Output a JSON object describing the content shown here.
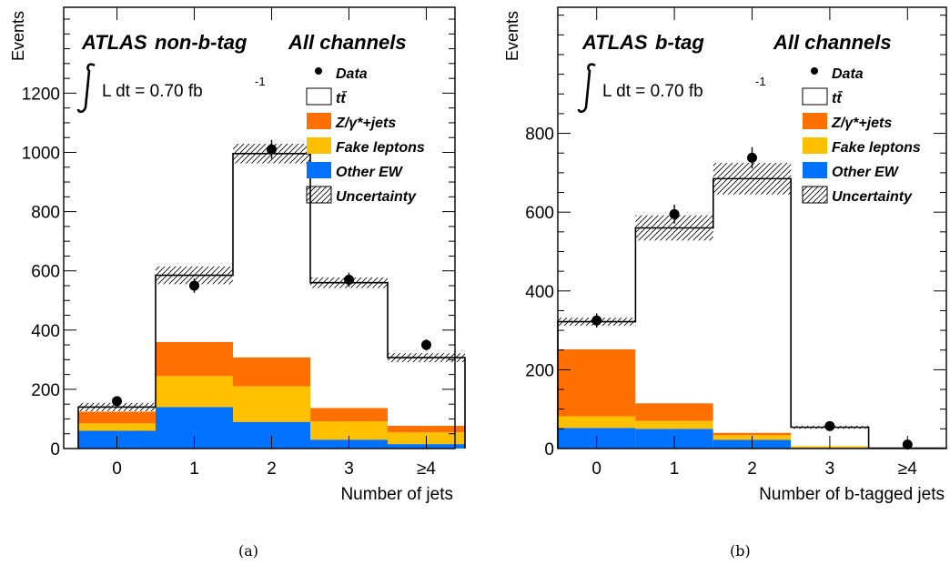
{
  "colors": {
    "ttbar": "#ffffff",
    "zjets": "#ff7000",
    "fake": "#ffc000",
    "other_ew": "#0072ff",
    "line": "#000000"
  },
  "captions": {
    "a": "(a)",
    "b": "(b)"
  },
  "chart_data": [
    {
      "type": "bar",
      "stacked": true,
      "atlas_label": "ATLAS",
      "region": "non-b-tag",
      "channels": "All channels",
      "lumi_prefix": "L dt = 0.70 fb",
      "lumi_exp": "-1",
      "xlabel": "Number of jets",
      "ylabel": "Events",
      "categories": [
        "0",
        "1",
        "2",
        "3",
        "≥4"
      ],
      "ylim": [
        0,
        1490
      ],
      "yticks": [
        0,
        200,
        400,
        600,
        800,
        1000,
        1200
      ],
      "legend": [
        "Data",
        "tt̄",
        "Z/γ*+jets",
        "Fake leptons",
        "Other EW",
        "Uncertainty"
      ],
      "series": [
        {
          "name": "Other EW",
          "values": [
            60,
            140,
            90,
            30,
            15
          ]
        },
        {
          "name": "Fake leptons",
          "values": [
            25,
            105,
            120,
            62,
            40
          ]
        },
        {
          "name": "Z/γ*+jets",
          "values": [
            40,
            115,
            98,
            45,
            22
          ]
        },
        {
          "name": "tt̄",
          "values": [
            15,
            225,
            688,
            423,
            230
          ]
        }
      ],
      "total": [
        140,
        585,
        996,
        560,
        307
      ],
      "uncertainty": [
        14,
        30,
        33,
        18,
        15
      ],
      "data": [
        160,
        550,
        1010,
        570,
        350
      ],
      "data_err": [
        13,
        24,
        32,
        24,
        19
      ]
    },
    {
      "type": "bar",
      "stacked": true,
      "atlas_label": "ATLAS",
      "region": "b-tag",
      "channels": "All channels",
      "lumi_prefix": "L dt = 0.70 fb",
      "lumi_exp": "-1",
      "xlabel": "Number of b-tagged jets",
      "ylabel": "Events",
      "categories": [
        "0",
        "1",
        "2",
        "3",
        "≥4"
      ],
      "ylim": [
        0,
        1120
      ],
      "yticks": [
        0,
        200,
        400,
        600,
        800
      ],
      "legend": [
        "Data",
        "tt̄",
        "Z/γ*+jets",
        "Fake leptons",
        "Other EW",
        "Uncertainty"
      ],
      "series": [
        {
          "name": "Other EW",
          "values": [
            52,
            50,
            22,
            2,
            0
          ]
        },
        {
          "name": "Fake leptons",
          "values": [
            30,
            20,
            12,
            4,
            0
          ]
        },
        {
          "name": "Z/γ*+jets",
          "values": [
            170,
            45,
            6,
            0,
            0
          ]
        },
        {
          "name": "tt̄",
          "values": [
            70,
            445,
            645,
            48,
            1
          ]
        }
      ],
      "total": [
        322,
        560,
        685,
        54,
        1
      ],
      "uncertainty": [
        10,
        32,
        40,
        4,
        1
      ],
      "data": [
        325,
        595,
        738,
        57,
        10
      ],
      "data_err": [
        18,
        24,
        27,
        8,
        3
      ]
    }
  ]
}
